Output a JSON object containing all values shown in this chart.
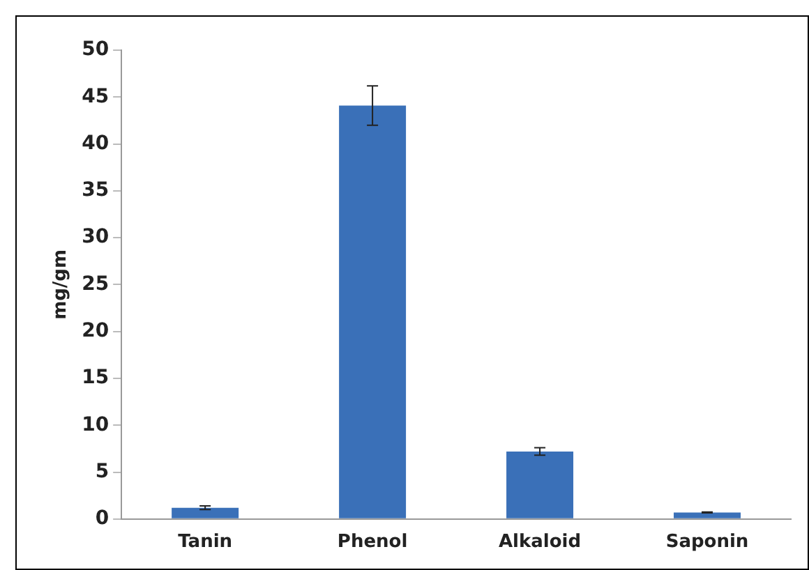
{
  "chart_data": {
    "type": "bar",
    "ylabel": "mg/gm",
    "categories": [
      "Tanin",
      "Phenol",
      "Alkaloid",
      "Saponin"
    ],
    "values": [
      1.2,
      44.1,
      7.2,
      0.7
    ],
    "errors": [
      0.2,
      2.1,
      0.4,
      0.05
    ],
    "color": "#3a70b8",
    "ylim": [
      0,
      50
    ],
    "yticks": [
      0,
      5,
      10,
      15,
      20,
      25,
      30,
      35,
      40,
      45,
      50
    ],
    "grid": false,
    "legend": false
  }
}
